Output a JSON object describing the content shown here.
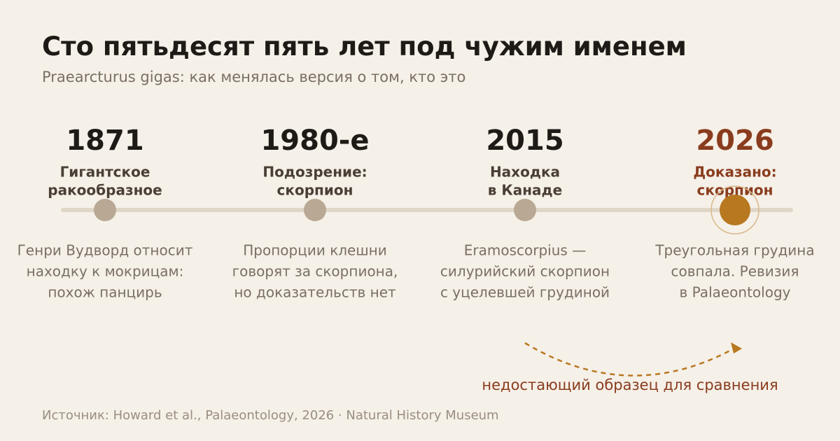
{
  "header": {
    "title": "Сто пятьдесят пять лет под чужим именем",
    "subtitle": "Praearcturus gigas: как менялась версия о том, кто это"
  },
  "events": [
    {
      "year": "1871",
      "heading": [
        "Гигантское",
        "ракообразное"
      ],
      "text": [
        "Генри Вудворд относит",
        "находку к мокрицам:",
        "похож панцирь"
      ]
    },
    {
      "year": "1980-е",
      "heading": [
        "Подозрение:",
        "скорпион"
      ],
      "text": [
        "Пропорции клешни",
        "говорят за скорпиона,",
        "но доказательств нет"
      ]
    },
    {
      "year": "2015",
      "heading": [
        "Находка",
        "в Канаде"
      ],
      "text": [
        "Eramoscorpius —",
        "силурийский скорпион",
        "с уцелевшей грудиной"
      ]
    },
    {
      "year": "2026",
      "heading": [
        "Доказано:",
        "скорпион"
      ],
      "text": [
        "Треугольная грудина",
        "совпала. Ревизия",
        "в Palaeontology"
      ]
    }
  ],
  "annotation": "недостающий образец для сравнения",
  "footer": "Источник: Howard et al., Palaeontology, 2026 · Natural History Museum"
}
